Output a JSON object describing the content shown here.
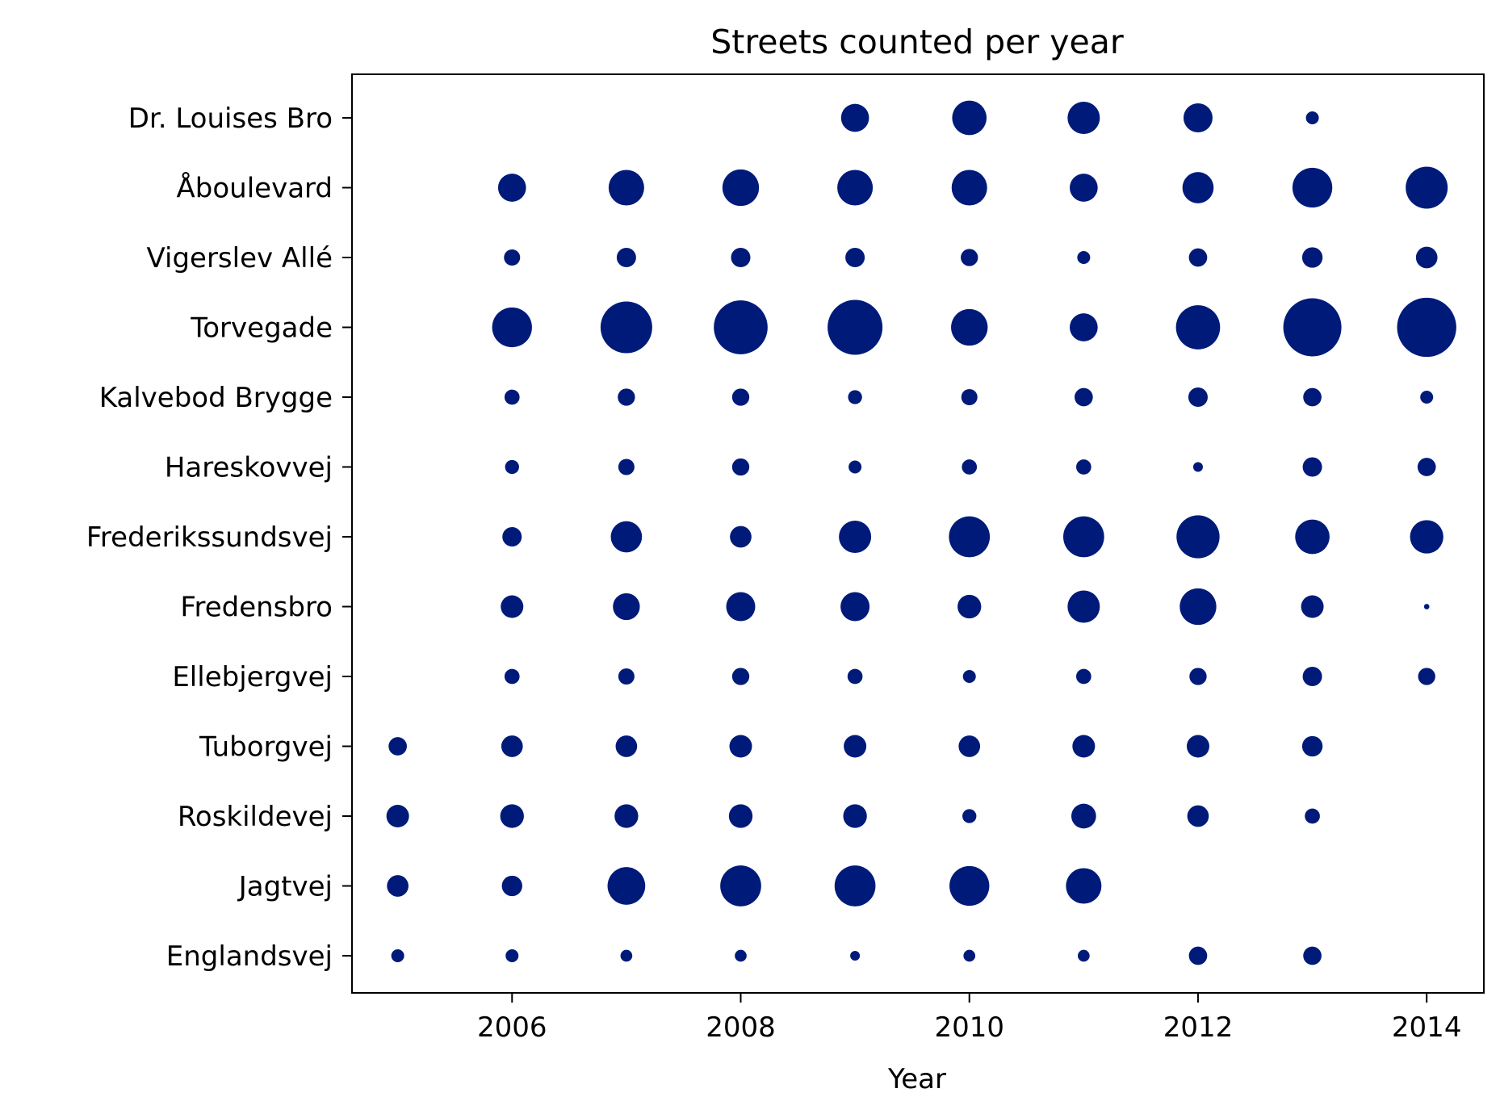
{
  "chart_data": {
    "type": "scatter",
    "title": "Streets counted per year",
    "xlabel": "Year",
    "ylabel": "",
    "xlim": [
      2004.6,
      2014.5
    ],
    "x_ticks": [
      2006,
      2008,
      2010,
      2012,
      2014
    ],
    "x_tick_labels": [
      "2006",
      "2008",
      "2010",
      "2012",
      "2014"
    ],
    "categories": [
      "Englandsvej",
      "Jagtvej",
      "Roskildevej",
      "Tuborgvej",
      "Ellebjergvej",
      "Fredensbro",
      "Frederikssundsvej",
      "Hareskovvej",
      "Kalvebod Brygge",
      "Torvegade",
      "Vigerslev Allé",
      "Åboulevard",
      "Dr. Louises Bro"
    ],
    "years": [
      2005,
      2006,
      2007,
      2008,
      2009,
      2010,
      2011,
      2012,
      2013,
      2014
    ],
    "marker_size_note": "",
    "series": [
      {
        "category": "Englandsvej",
        "values": [
          12,
          12,
          11,
          11,
          9,
          11,
          11,
          17,
          17,
          null
        ]
      },
      {
        "category": "Jagtvej",
        "values": [
          20,
          19,
          35,
          38,
          38,
          37,
          33,
          null,
          null,
          null
        ]
      },
      {
        "category": "Roskildevej",
        "values": [
          21,
          22,
          22,
          22,
          22,
          13,
          23,
          20,
          14,
          null
        ]
      },
      {
        "category": "Tuborgvej",
        "values": [
          17,
          20,
          20,
          21,
          21,
          20,
          21,
          21,
          19,
          null
        ]
      },
      {
        "category": "Ellebjergvej",
        "values": [
          null,
          14,
          15,
          16,
          14,
          12,
          14,
          16,
          18,
          16
        ]
      },
      {
        "category": "Fredensbro",
        "values": [
          null,
          21,
          25,
          27,
          27,
          22,
          30,
          34,
          21,
          5
        ]
      },
      {
        "category": "Frederikssundsvej",
        "values": [
          null,
          18,
          29,
          20,
          30,
          38,
          38,
          40,
          32,
          31
        ]
      },
      {
        "category": "Hareskovvej",
        "values": [
          null,
          13,
          15,
          16,
          12,
          14,
          14,
          9,
          18,
          17
        ]
      },
      {
        "category": "Kalvebod Brygge",
        "values": [
          null,
          14,
          16,
          16,
          13,
          15,
          17,
          18,
          17,
          12
        ]
      },
      {
        "category": "Torvegade",
        "values": [
          null,
          37,
          48,
          50,
          51,
          34,
          26,
          41,
          54,
          55
        ]
      },
      {
        "category": "Vigerslev Allé",
        "values": [
          null,
          15,
          18,
          18,
          18,
          16,
          12,
          17,
          19,
          20
        ]
      },
      {
        "category": "Åboulevard",
        "values": [
          null,
          26,
          33,
          34,
          33,
          33,
          26,
          29,
          37,
          39
        ]
      },
      {
        "category": "Dr. Louises Bro",
        "values": [
          null,
          null,
          null,
          null,
          26,
          32,
          30,
          27,
          12,
          null
        ]
      }
    ],
    "colors": {
      "marker": "#001a7a",
      "axis": "#000000"
    },
    "grid": false,
    "legend": "none"
  }
}
